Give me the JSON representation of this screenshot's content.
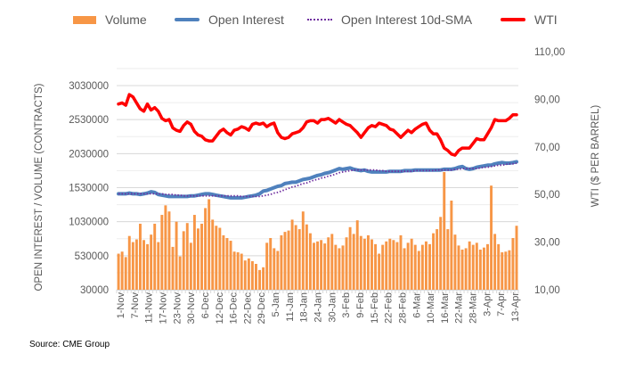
{
  "legend": {
    "volume": "Volume",
    "open_interest": "Open Interest",
    "oi_sma": "Open Interest 10d-SMA",
    "wti": "WTI"
  },
  "source": "Source: CME Group",
  "colors": {
    "volume": "#f79646",
    "open_interest": "#4f81bd",
    "oi_sma": "#7030a0",
    "wti": "#ff0000",
    "grid": "#d9d9d9",
    "text": "#595959"
  },
  "chart_data": {
    "type": "bar",
    "title": "",
    "ylabel": "OPEN INTEREST / VOLUME (CONTRACTS)",
    "y2label": "WTI ($ PER BARREL)",
    "ylim": [
      30000,
      3030000
    ],
    "y2lim": [
      10,
      110
    ],
    "yticks": [
      "30000",
      "530000",
      "1030000",
      "1530000",
      "2030000",
      "2530000",
      "3030000"
    ],
    "y2ticks": [
      "10,00",
      "30,00",
      "50,00",
      "70,00",
      "90,00",
      "110,00"
    ],
    "xtick_labels": [
      "1-Nov",
      "7-Nov",
      "11-Nov",
      "17-Nov",
      "23-Nov",
      "30-Nov",
      "6-Dec",
      "12-Dec",
      "16-Dec",
      "22-Dec",
      "29-Dec",
      "5-Jan",
      "11-Jan",
      "18-Jan",
      "24-Jan",
      "30-Jan",
      "3-Feb",
      "9-Feb",
      "15-Feb",
      "22-Feb",
      "28-Feb",
      "6-Mar",
      "10-Mar",
      "16-Mar",
      "22-Mar",
      "28-Mar",
      "3-Apr",
      "7-Apr",
      "13-Apr"
    ],
    "grid": true,
    "legend_position": "top",
    "series": [
      {
        "name": "Volume",
        "kind": "bar",
        "axis": "left",
        "values": [
          560000,
          590000,
          510000,
          820000,
          730000,
          770000,
          1000000,
          760000,
          700000,
          840000,
          1000000,
          730000,
          1130000,
          1270000,
          1180000,
          660000,
          1030000,
          520000,
          890000,
          1010000,
          720000,
          1130000,
          930000,
          1000000,
          1230000,
          1360000,
          1060000,
          970000,
          940000,
          830000,
          790000,
          750000,
          590000,
          580000,
          560000,
          460000,
          490000,
          450000,
          410000,
          320000,
          360000,
          720000,
          790000,
          640000,
          600000,
          830000,
          880000,
          900000,
          1060000,
          980000,
          920000,
          1180000,
          990000,
          860000,
          720000,
          740000,
          760000,
          710000,
          800000,
          850000,
          690000,
          640000,
          680000,
          800000,
          950000,
          850000,
          1050000,
          820000,
          780000,
          830000,
          770000,
          700000,
          560000,
          690000,
          740000,
          780000,
          760000,
          730000,
          830000,
          640000,
          720000,
          780000,
          690000,
          600000,
          690000,
          740000,
          700000,
          860000,
          920000,
          1100000,
          1760000,
          920000,
          1340000,
          840000,
          680000,
          620000,
          640000,
          740000,
          690000,
          720000,
          620000,
          650000,
          700000,
          1560000,
          850000,
          700000,
          580000,
          590000,
          610000,
          790000,
          970000
        ],
        "color": "#f79646"
      },
      {
        "name": "Open Interest",
        "kind": "line",
        "axis": "left",
        "values": [
          1440000,
          1440000,
          1440000,
          1450000,
          1440000,
          1440000,
          1430000,
          1440000,
          1450000,
          1470000,
          1460000,
          1430000,
          1420000,
          1410000,
          1400000,
          1400000,
          1400000,
          1400000,
          1400000,
          1400000,
          1410000,
          1410000,
          1420000,
          1430000,
          1440000,
          1440000,
          1430000,
          1420000,
          1410000,
          1400000,
          1390000,
          1380000,
          1380000,
          1380000,
          1380000,
          1390000,
          1400000,
          1410000,
          1420000,
          1440000,
          1480000,
          1490000,
          1510000,
          1530000,
          1550000,
          1560000,
          1590000,
          1600000,
          1610000,
          1610000,
          1630000,
          1650000,
          1660000,
          1670000,
          1690000,
          1710000,
          1720000,
          1740000,
          1750000,
          1770000,
          1790000,
          1810000,
          1800000,
          1810000,
          1820000,
          1800000,
          1790000,
          1780000,
          1790000,
          1770000,
          1760000,
          1760000,
          1760000,
          1760000,
          1760000,
          1770000,
          1770000,
          1770000,
          1770000,
          1780000,
          1780000,
          1780000,
          1790000,
          1790000,
          1790000,
          1790000,
          1790000,
          1790000,
          1790000,
          1790000,
          1800000,
          1800000,
          1800000,
          1810000,
          1830000,
          1840000,
          1810000,
          1800000,
          1810000,
          1830000,
          1840000,
          1850000,
          1860000,
          1860000,
          1880000,
          1890000,
          1900000,
          1890000,
          1890000,
          1900000,
          1910000
        ],
        "color": "#4f81bd"
      },
      {
        "name": "Open Interest 10d-SMA",
        "kind": "line",
        "axis": "left",
        "values": [
          1440000,
          1440000,
          1440000,
          1440000,
          1440000,
          1440000,
          1440000,
          1440000,
          1440000,
          1440000,
          1440000,
          1440000,
          1440000,
          1430000,
          1430000,
          1430000,
          1420000,
          1420000,
          1410000,
          1410000,
          1410000,
          1410000,
          1410000,
          1410000,
          1410000,
          1410000,
          1410000,
          1410000,
          1410000,
          1410000,
          1410000,
          1410000,
          1410000,
          1410000,
          1400000,
          1400000,
          1400000,
          1400000,
          1400000,
          1400000,
          1410000,
          1420000,
          1430000,
          1450000,
          1460000,
          1480000,
          1500000,
          1520000,
          1540000,
          1550000,
          1570000,
          1590000,
          1600000,
          1620000,
          1640000,
          1650000,
          1670000,
          1680000,
          1700000,
          1710000,
          1730000,
          1750000,
          1760000,
          1770000,
          1780000,
          1790000,
          1790000,
          1790000,
          1790000,
          1790000,
          1790000,
          1790000,
          1780000,
          1780000,
          1770000,
          1770000,
          1770000,
          1770000,
          1770000,
          1770000,
          1770000,
          1770000,
          1780000,
          1780000,
          1780000,
          1780000,
          1780000,
          1780000,
          1790000,
          1790000,
          1790000,
          1790000,
          1790000,
          1800000,
          1800000,
          1810000,
          1810000,
          1810000,
          1810000,
          1810000,
          1820000,
          1830000,
          1830000,
          1840000,
          1850000,
          1860000,
          1860000,
          1870000,
          1880000,
          1880000,
          1890000
        ],
        "color": "#7030a0"
      },
      {
        "name": "WTI",
        "kind": "line",
        "axis": "right",
        "values": [
          88.0,
          88.5,
          87.5,
          92.0,
          91.0,
          88.5,
          86.0,
          85.0,
          88.0,
          85.5,
          86.5,
          85.0,
          82.0,
          81.0,
          81.5,
          78.0,
          77.0,
          76.5,
          79.0,
          80.5,
          79.5,
          76.5,
          75.0,
          74.5,
          73.0,
          72.5,
          72.5,
          74.5,
          76.5,
          77.5,
          76.0,
          75.0,
          77.0,
          77.5,
          78.5,
          78.0,
          77.0,
          79.5,
          80.0,
          79.5,
          80.0,
          78.5,
          79.5,
          80.0,
          76.0,
          74.0,
          73.5,
          74.0,
          75.5,
          76.0,
          76.5,
          78.0,
          80.5,
          81.0,
          81.0,
          80.0,
          81.5,
          81.5,
          82.0,
          81.0,
          80.0,
          81.5,
          80.5,
          79.5,
          79.0,
          77.5,
          76.0,
          74.0,
          76.0,
          78.0,
          79.0,
          78.5,
          80.0,
          79.5,
          79.0,
          77.5,
          77.0,
          75.5,
          74.0,
          75.5,
          77.0,
          76.0,
          77.5,
          78.5,
          79.5,
          80.0,
          77.0,
          75.5,
          75.5,
          73.0,
          69.5,
          68.5,
          67.0,
          66.5,
          68.5,
          69.5,
          69.5,
          69.5,
          71.5,
          73.5,
          73.0,
          73.0,
          75.5,
          78.0,
          81.5,
          81.0,
          81.0,
          81.0,
          82.0,
          83.5,
          83.5
        ]
      }
    ]
  }
}
